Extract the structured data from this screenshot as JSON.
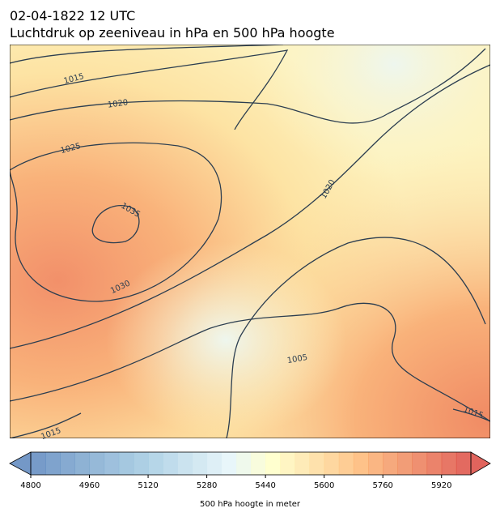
{
  "header": {
    "title": "02-04-1822 12 UTC",
    "subtitle": "Luchtdruk op zeeniveau in hPa en 500 hPa hoogte"
  },
  "contour_labels": [
    "1015",
    "1020",
    "1025",
    "1035",
    "1030",
    "1020",
    "1005",
    "1015",
    "1015"
  ],
  "colorbar": {
    "label": "500 hPa hoogte in meter",
    "lim": [
      4800,
      6000
    ],
    "step": 40,
    "ticks": [
      4800,
      4960,
      5120,
      5280,
      5440,
      5600,
      5760,
      5920
    ]
  }
}
